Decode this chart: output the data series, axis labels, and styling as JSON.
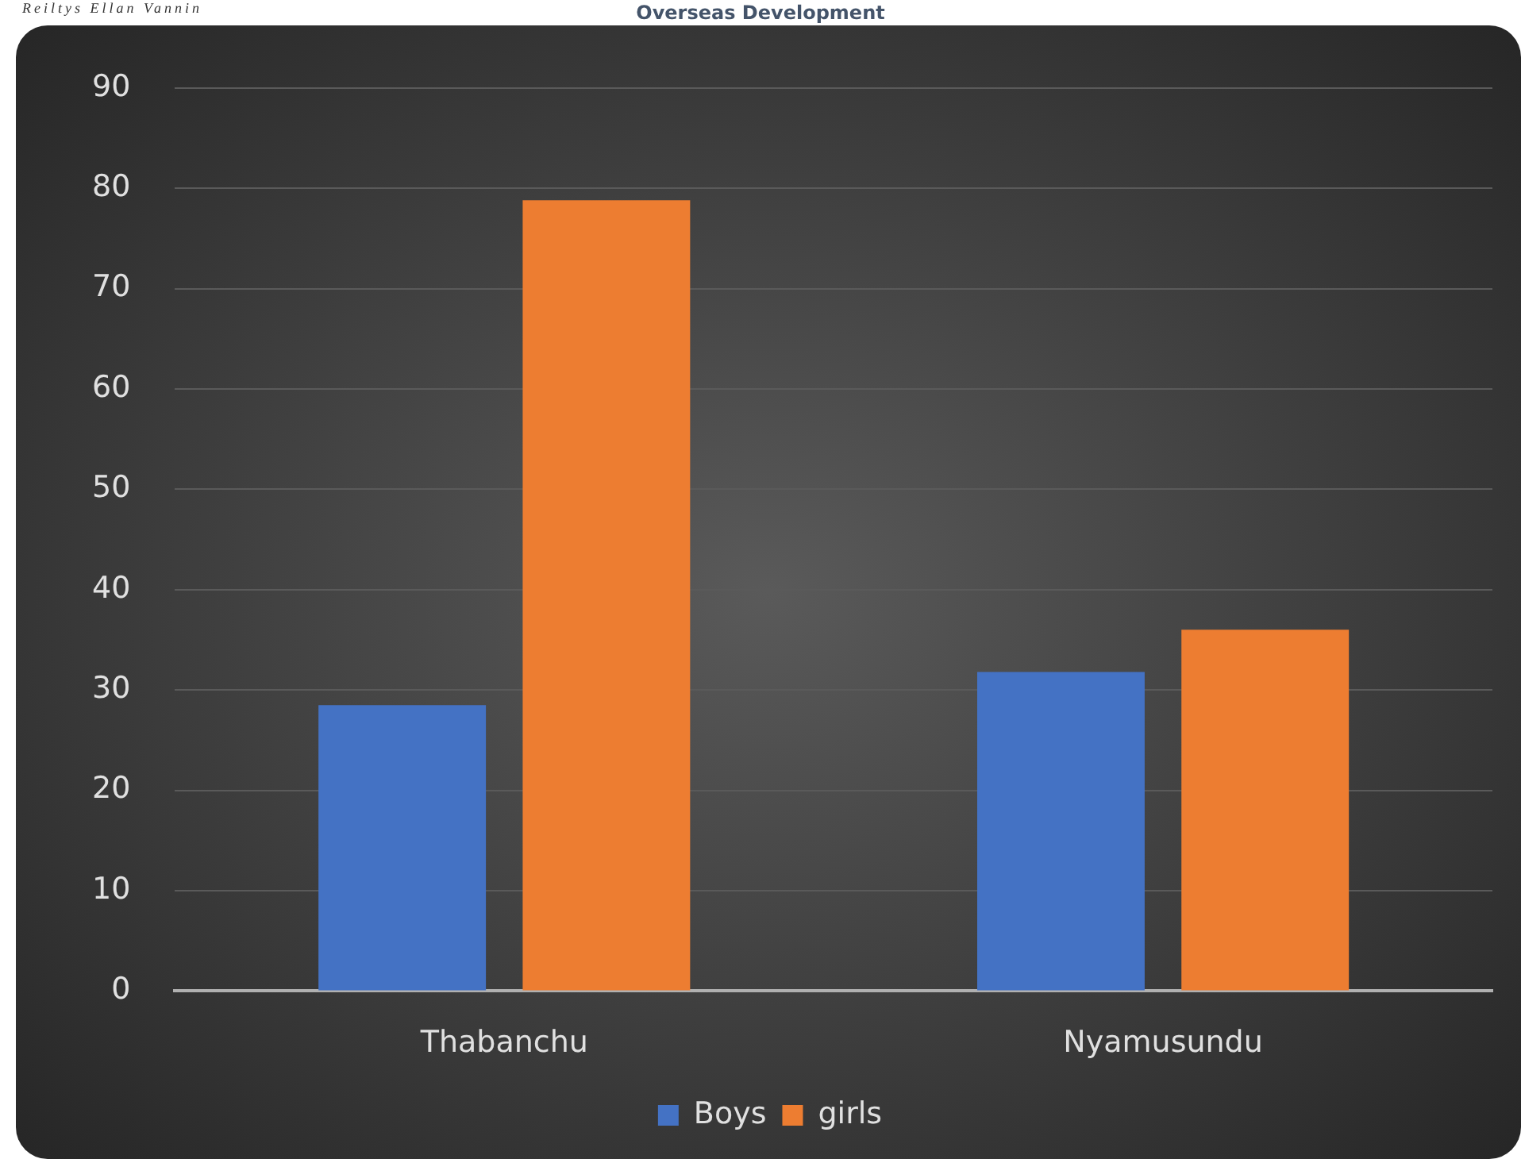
{
  "chart_data": {
    "type": "bar",
    "title": "Overseas Development",
    "annotations": [
      "Reiltys Ellan Vannin"
    ],
    "categories": [
      "Thabanchu",
      "Nyamusundu"
    ],
    "series": [
      {
        "name": "Boys",
        "color": "#4472c4",
        "values": [
          28.5,
          31.8
        ]
      },
      {
        "name": "girls",
        "color": "#ed7d31",
        "values": [
          78.8,
          36.0
        ]
      }
    ],
    "ylim": [
      0,
      90
    ],
    "yticks": [
      0,
      10,
      20,
      30,
      40,
      50,
      60,
      70,
      80,
      90
    ],
    "grid": "y",
    "legend": "bottom"
  }
}
